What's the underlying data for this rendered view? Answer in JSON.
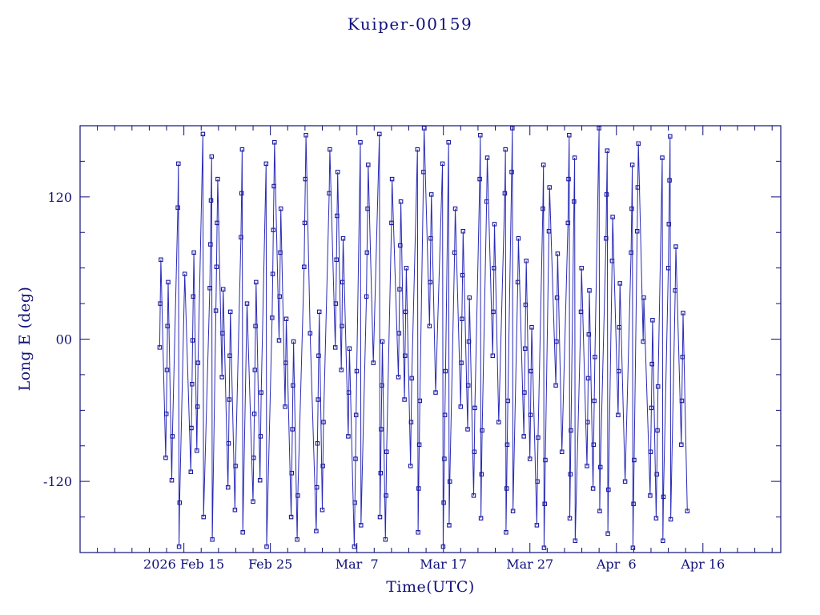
{
  "colors": {
    "data_line": "#2929b8",
    "marker": "#1a1aa0",
    "axis": "#10107a",
    "text": "#10107a",
    "background": "#ffffff"
  },
  "chart_data": {
    "type": "line",
    "title": "Kuiper-00159",
    "xlabel": "Time(UTC)",
    "ylabel": "Long E (deg)",
    "x_unit": "days since 2026 Feb 3 00:00 UTC",
    "xlim": [
      0,
      81
    ],
    "ylim": [
      -180,
      180
    ],
    "x_major_ticks": [
      12,
      22,
      32,
      42,
      52,
      62,
      72
    ],
    "x_tick_labels": [
      "2026 Feb 15",
      "Feb 25",
      "Mar  7",
      "Mar 17",
      "Mar 27",
      "Apr  6",
      "Apr 16"
    ],
    "x_minor_step": 2,
    "y_major_ticks": [
      -120,
      0,
      120
    ],
    "y_tick_labels": [
      "-120",
      "00",
      "120"
    ],
    "y_minor_step": 30,
    "grid": false,
    "legend": false,
    "marker_style": "open-square",
    "points": [
      [
        9.2,
        -7
      ],
      [
        9.27,
        30
      ],
      [
        9.34,
        67
      ],
      [
        9.9,
        -100
      ],
      [
        9.97,
        -63
      ],
      [
        10.04,
        -26
      ],
      [
        10.11,
        11
      ],
      [
        10.18,
        48
      ],
      [
        10.6,
        -119
      ],
      [
        10.67,
        -82
      ],
      [
        11.3,
        111
      ],
      [
        11.37,
        148
      ],
      [
        11.44,
        -175
      ],
      [
        11.51,
        -138
      ],
      [
        12.1,
        55
      ],
      [
        12.8,
        -112
      ],
      [
        12.87,
        -75
      ],
      [
        12.94,
        -38
      ],
      [
        13.01,
        -1
      ],
      [
        13.08,
        36
      ],
      [
        13.15,
        73
      ],
      [
        13.5,
        -94
      ],
      [
        13.57,
        -57
      ],
      [
        13.64,
        -20
      ],
      [
        14.2,
        173
      ],
      [
        14.27,
        -150
      ],
      [
        15.0,
        43
      ],
      [
        15.07,
        80
      ],
      [
        15.14,
        117
      ],
      [
        15.21,
        154
      ],
      [
        15.28,
        -169
      ],
      [
        15.7,
        24
      ],
      [
        15.77,
        61
      ],
      [
        15.84,
        98
      ],
      [
        15.91,
        135
      ],
      [
        16.4,
        -32
      ],
      [
        16.47,
        5
      ],
      [
        16.54,
        42
      ],
      [
        17.1,
        -125
      ],
      [
        17.17,
        -88
      ],
      [
        17.24,
        -51
      ],
      [
        17.31,
        -14
      ],
      [
        17.38,
        23
      ],
      [
        17.9,
        -144
      ],
      [
        17.97,
        -107
      ],
      [
        18.6,
        86
      ],
      [
        18.67,
        123
      ],
      [
        18.74,
        160
      ],
      [
        18.81,
        -163
      ],
      [
        19.3,
        30
      ],
      [
        20.0,
        -137
      ],
      [
        20.07,
        -100
      ],
      [
        20.14,
        -63
      ],
      [
        20.21,
        -26
      ],
      [
        20.28,
        11
      ],
      [
        20.35,
        48
      ],
      [
        20.8,
        -119
      ],
      [
        20.87,
        -82
      ],
      [
        20.94,
        -45
      ],
      [
        21.5,
        148
      ],
      [
        21.57,
        -175
      ],
      [
        22.2,
        18
      ],
      [
        22.27,
        55
      ],
      [
        22.34,
        92
      ],
      [
        22.41,
        129
      ],
      [
        22.48,
        166
      ],
      [
        23.0,
        -1
      ],
      [
        23.07,
        36
      ],
      [
        23.14,
        73
      ],
      [
        23.21,
        110
      ],
      [
        23.7,
        -57
      ],
      [
        23.77,
        -20
      ],
      [
        23.84,
        17
      ],
      [
        24.4,
        -150
      ],
      [
        24.47,
        -113
      ],
      [
        24.54,
        -76
      ],
      [
        24.61,
        -39
      ],
      [
        24.68,
        -2
      ],
      [
        25.1,
        -169
      ],
      [
        25.17,
        -132
      ],
      [
        25.9,
        61
      ],
      [
        25.97,
        98
      ],
      [
        26.04,
        135
      ],
      [
        26.11,
        172
      ],
      [
        26.6,
        5
      ],
      [
        27.3,
        -162
      ],
      [
        27.37,
        -125
      ],
      [
        27.44,
        -88
      ],
      [
        27.51,
        -51
      ],
      [
        27.58,
        -14
      ],
      [
        27.65,
        23
      ],
      [
        28.0,
        -144
      ],
      [
        28.07,
        -107
      ],
      [
        28.14,
        -70
      ],
      [
        28.8,
        123
      ],
      [
        28.87,
        160
      ],
      [
        29.5,
        -7
      ],
      [
        29.57,
        30
      ],
      [
        29.64,
        67
      ],
      [
        29.71,
        104
      ],
      [
        29.78,
        141
      ],
      [
        30.2,
        -26
      ],
      [
        30.27,
        11
      ],
      [
        30.34,
        48
      ],
      [
        30.41,
        85
      ],
      [
        31.0,
        -82
      ],
      [
        31.07,
        -45
      ],
      [
        31.14,
        -8
      ],
      [
        31.7,
        -175
      ],
      [
        31.77,
        -138
      ],
      [
        31.84,
        -101
      ],
      [
        31.91,
        -64
      ],
      [
        31.98,
        -27
      ],
      [
        32.4,
        166
      ],
      [
        32.47,
        -157
      ],
      [
        33.1,
        36
      ],
      [
        33.17,
        73
      ],
      [
        33.24,
        110
      ],
      [
        33.31,
        147
      ],
      [
        33.9,
        -20
      ],
      [
        34.6,
        173
      ],
      [
        34.67,
        -150
      ],
      [
        34.74,
        -113
      ],
      [
        34.81,
        -76
      ],
      [
        34.88,
        -39
      ],
      [
        34.95,
        -2
      ],
      [
        35.3,
        -169
      ],
      [
        35.37,
        -132
      ],
      [
        35.44,
        -95
      ],
      [
        36.0,
        98
      ],
      [
        36.07,
        135
      ],
      [
        36.8,
        -32
      ],
      [
        36.87,
        5
      ],
      [
        36.94,
        42
      ],
      [
        37.01,
        79
      ],
      [
        37.08,
        116
      ],
      [
        37.5,
        -51
      ],
      [
        37.57,
        -14
      ],
      [
        37.64,
        23
      ],
      [
        37.71,
        60
      ],
      [
        38.2,
        -107
      ],
      [
        38.27,
        -70
      ],
      [
        38.34,
        -33
      ],
      [
        39.0,
        160
      ],
      [
        39.07,
        -163
      ],
      [
        39.14,
        -126
      ],
      [
        39.21,
        -89
      ],
      [
        39.28,
        -52
      ],
      [
        39.7,
        141
      ],
      [
        39.77,
        178
      ],
      [
        40.4,
        11
      ],
      [
        40.47,
        48
      ],
      [
        40.54,
        85
      ],
      [
        40.61,
        122
      ],
      [
        41.1,
        -45
      ],
      [
        41.9,
        148
      ],
      [
        41.97,
        -175
      ],
      [
        42.04,
        -138
      ],
      [
        42.11,
        -101
      ],
      [
        42.18,
        -64
      ],
      [
        42.25,
        -27
      ],
      [
        42.6,
        166
      ],
      [
        42.67,
        -157
      ],
      [
        42.74,
        -120
      ],
      [
        43.3,
        73
      ],
      [
        43.37,
        110
      ],
      [
        44.0,
        -57
      ],
      [
        44.07,
        -20
      ],
      [
        44.14,
        17
      ],
      [
        44.21,
        54
      ],
      [
        44.28,
        91
      ],
      [
        44.8,
        -76
      ],
      [
        44.87,
        -39
      ],
      [
        44.94,
        -2
      ],
      [
        45.01,
        35
      ],
      [
        45.5,
        -132
      ],
      [
        45.57,
        -95
      ],
      [
        45.64,
        -58
      ],
      [
        46.2,
        135
      ],
      [
        46.27,
        172
      ],
      [
        46.34,
        -151
      ],
      [
        46.41,
        -114
      ],
      [
        46.48,
        -77
      ],
      [
        47.0,
        116
      ],
      [
        47.07,
        153
      ],
      [
        47.7,
        -14
      ],
      [
        47.77,
        23
      ],
      [
        47.84,
        60
      ],
      [
        47.91,
        97
      ],
      [
        48.4,
        -70
      ],
      [
        49.1,
        123
      ],
      [
        49.17,
        160
      ],
      [
        49.24,
        -163
      ],
      [
        49.31,
        -126
      ],
      [
        49.38,
        -89
      ],
      [
        49.45,
        -52
      ],
      [
        49.9,
        141
      ],
      [
        49.97,
        178
      ],
      [
        50.04,
        -145
      ],
      [
        50.6,
        48
      ],
      [
        50.67,
        85
      ],
      [
        51.3,
        -82
      ],
      [
        51.37,
        -45
      ],
      [
        51.44,
        -8
      ],
      [
        51.51,
        29
      ],
      [
        51.58,
        66
      ],
      [
        52.0,
        -101
      ],
      [
        52.07,
        -64
      ],
      [
        52.14,
        -27
      ],
      [
        52.21,
        10
      ],
      [
        52.8,
        -157
      ],
      [
        52.87,
        -120
      ],
      [
        52.94,
        -83
      ],
      [
        53.5,
        110
      ],
      [
        53.57,
        147
      ],
      [
        53.64,
        -176
      ],
      [
        53.71,
        -139
      ],
      [
        53.78,
        -102
      ],
      [
        54.2,
        91
      ],
      [
        54.27,
        128
      ],
      [
        55.0,
        -39
      ],
      [
        55.07,
        -2
      ],
      [
        55.14,
        35
      ],
      [
        55.21,
        72
      ],
      [
        55.7,
        -95
      ],
      [
        56.4,
        98
      ],
      [
        56.47,
        135
      ],
      [
        56.54,
        172
      ],
      [
        56.61,
        -151
      ],
      [
        56.68,
        -114
      ],
      [
        56.75,
        -77
      ],
      [
        57.1,
        116
      ],
      [
        57.17,
        153
      ],
      [
        57.24,
        -170
      ],
      [
        57.9,
        23
      ],
      [
        57.97,
        60
      ],
      [
        58.6,
        -107
      ],
      [
        58.67,
        -70
      ],
      [
        58.74,
        -33
      ],
      [
        58.81,
        4
      ],
      [
        58.88,
        41
      ],
      [
        59.3,
        -126
      ],
      [
        59.37,
        -89
      ],
      [
        59.44,
        -52
      ],
      [
        59.51,
        -15
      ],
      [
        60.0,
        178
      ],
      [
        60.07,
        -145
      ],
      [
        60.14,
        -108
      ],
      [
        60.8,
        85
      ],
      [
        60.87,
        122
      ],
      [
        60.94,
        159
      ],
      [
        61.01,
        -164
      ],
      [
        61.08,
        -127
      ],
      [
        61.5,
        66
      ],
      [
        61.57,
        103
      ],
      [
        62.2,
        -64
      ],
      [
        62.27,
        -27
      ],
      [
        62.34,
        10
      ],
      [
        62.41,
        47
      ],
      [
        63.0,
        -120
      ],
      [
        63.7,
        73
      ],
      [
        63.77,
        110
      ],
      [
        63.84,
        147
      ],
      [
        63.91,
        -176
      ],
      [
        63.98,
        -139
      ],
      [
        64.05,
        -102
      ],
      [
        64.4,
        91
      ],
      [
        64.47,
        128
      ],
      [
        64.54,
        165
      ],
      [
        65.1,
        -2
      ],
      [
        65.17,
        35
      ],
      [
        65.9,
        -132
      ],
      [
        65.97,
        -95
      ],
      [
        66.04,
        -58
      ],
      [
        66.11,
        -21
      ],
      [
        66.18,
        16
      ],
      [
        66.6,
        -151
      ],
      [
        66.67,
        -114
      ],
      [
        66.74,
        -77
      ],
      [
        66.81,
        -40
      ],
      [
        67.3,
        153
      ],
      [
        67.37,
        -170
      ],
      [
        67.44,
        -133
      ],
      [
        68.0,
        60
      ],
      [
        68.07,
        97
      ],
      [
        68.14,
        134
      ],
      [
        68.21,
        171
      ],
      [
        68.28,
        -152
      ],
      [
        68.8,
        41
      ],
      [
        68.87,
        78
      ],
      [
        69.5,
        -89
      ],
      [
        69.57,
        -52
      ],
      [
        69.64,
        -15
      ],
      [
        69.71,
        22
      ],
      [
        70.2,
        -145
      ]
    ]
  }
}
